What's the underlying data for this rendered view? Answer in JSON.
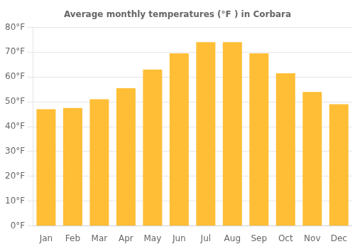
{
  "chart_data": {
    "type": "bar",
    "title": "Average monthly temperatures (°F ) in Corbara",
    "categories": [
      "Jan",
      "Feb",
      "Mar",
      "Apr",
      "May",
      "Jun",
      "Jul",
      "Aug",
      "Sep",
      "Oct",
      "Nov",
      "Dec"
    ],
    "values": [
      47,
      47.5,
      51,
      55.5,
      63,
      69.5,
      74,
      74,
      69.5,
      61.5,
      54,
      49
    ],
    "color": "#FFBE35",
    "ylim": [
      0,
      80
    ],
    "yticks": [
      {
        "value": 0,
        "label": "0°F"
      },
      {
        "value": 10,
        "label": "10°F"
      },
      {
        "value": 20,
        "label": "20°F"
      },
      {
        "value": 30,
        "label": "30°F"
      },
      {
        "value": 40,
        "label": "40°F"
      },
      {
        "value": 50,
        "label": "50°F"
      },
      {
        "value": 60,
        "label": "60°F"
      },
      {
        "value": 70,
        "label": "70°F"
      },
      {
        "value": 80,
        "label": "80°F"
      }
    ],
    "grid": true
  }
}
